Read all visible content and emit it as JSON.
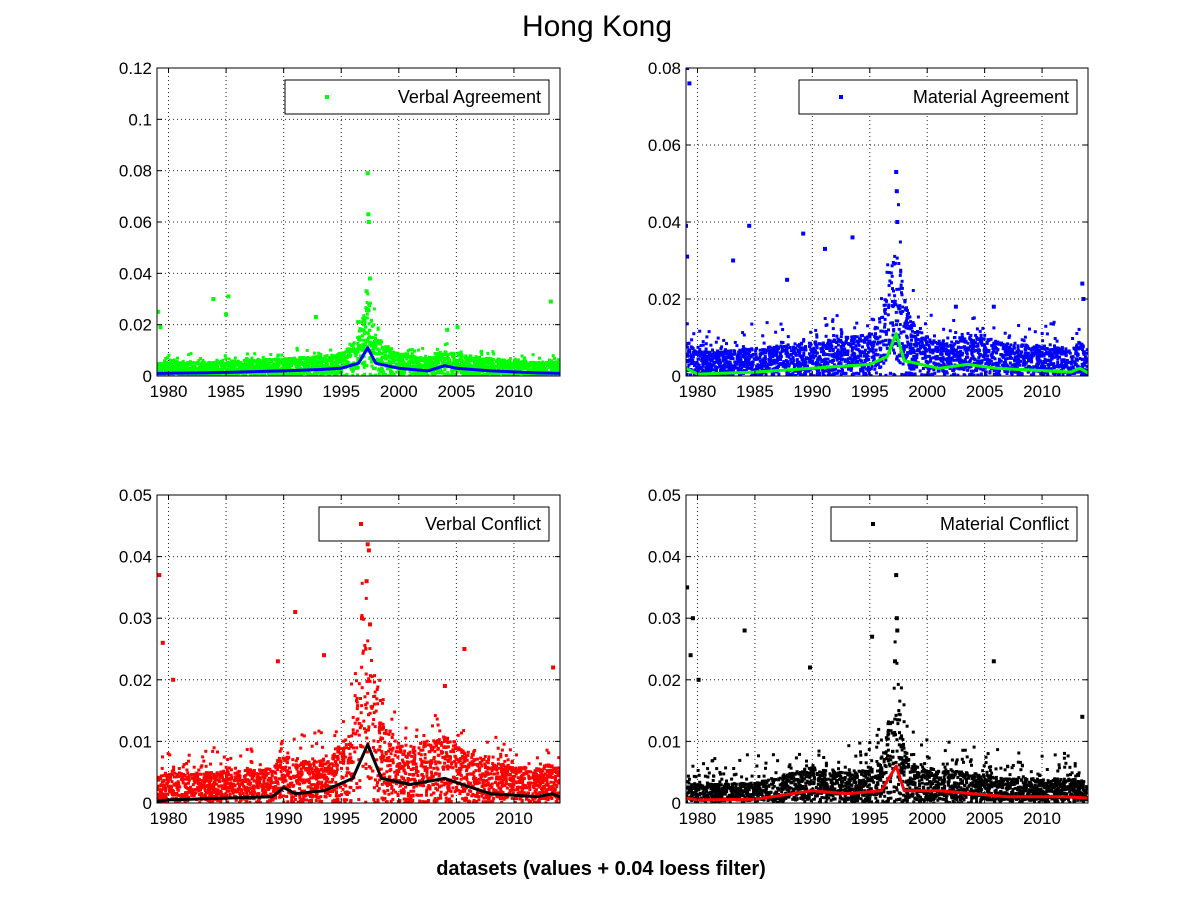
{
  "figure": {
    "title": "Hong Kong",
    "footer": "datasets (values + 0.04 loess filter)"
  },
  "chart_data": [
    {
      "type": "scatter",
      "legend": "Verbal Agreement",
      "legend_position": "top-right",
      "point_color": "#00ff00",
      "smooth_color": "#0000ff",
      "grid": true,
      "xlim": [
        1979,
        2014
      ],
      "ylim": [
        0,
        0.12
      ],
      "xticks": [
        "1980",
        "1985",
        "1990",
        "1995",
        "2000",
        "2005",
        "2010"
      ],
      "yticks": [
        "0",
        "0.02",
        "0.04",
        "0.06",
        "0.08",
        "0.1",
        "0.12"
      ],
      "baseline": 0.003,
      "spread": 0.004,
      "notable_points": [
        {
          "x": 1979.1,
          "y": 0.025
        },
        {
          "x": 1979.3,
          "y": 0.019
        },
        {
          "x": 1983.9,
          "y": 0.03
        },
        {
          "x": 1985.2,
          "y": 0.031
        },
        {
          "x": 1985.0,
          "y": 0.024
        },
        {
          "x": 1992.8,
          "y": 0.023
        },
        {
          "x": 1996.5,
          "y": 0.021
        },
        {
          "x": 1997.3,
          "y": 0.079
        },
        {
          "x": 1997.35,
          "y": 0.063
        },
        {
          "x": 1997.4,
          "y": 0.06
        },
        {
          "x": 1997.5,
          "y": 0.038
        },
        {
          "x": 1997.2,
          "y": 0.033
        },
        {
          "x": 2004.2,
          "y": 0.018
        },
        {
          "x": 2005.1,
          "y": 0.019
        },
        {
          "x": 2013.2,
          "y": 0.029
        }
      ],
      "trend": [
        {
          "x": 1979,
          "y": 0.001
        },
        {
          "x": 1983,
          "y": 0.0012
        },
        {
          "x": 1986,
          "y": 0.0015
        },
        {
          "x": 1990,
          "y": 0.002
        },
        {
          "x": 1993,
          "y": 0.0025
        },
        {
          "x": 1995,
          "y": 0.003
        },
        {
          "x": 1996.5,
          "y": 0.005
        },
        {
          "x": 1997.3,
          "y": 0.011
        },
        {
          "x": 1998,
          "y": 0.005
        },
        {
          "x": 2000,
          "y": 0.003
        },
        {
          "x": 2002.5,
          "y": 0.002
        },
        {
          "x": 2004,
          "y": 0.004
        },
        {
          "x": 2005,
          "y": 0.003
        },
        {
          "x": 2008,
          "y": 0.002
        },
        {
          "x": 2012,
          "y": 0.0012
        },
        {
          "x": 2014,
          "y": 0.001
        }
      ]
    },
    {
      "type": "scatter",
      "legend": "Material Agreement",
      "legend_position": "top-right",
      "point_color": "#0000ff",
      "smooth_color": "#00ff00",
      "grid": true,
      "xlim": [
        1979,
        2014
      ],
      "ylim": [
        0,
        0.08
      ],
      "xticks": [
        "1980",
        "1985",
        "1990",
        "1995",
        "2000",
        "2005",
        "2010"
      ],
      "yticks": [
        "0",
        "0.02",
        "0.04",
        "0.06",
        "0.08"
      ],
      "baseline": 0.005,
      "spread": 0.007,
      "notable_points": [
        {
          "x": 1979.1,
          "y": 0.08
        },
        {
          "x": 1979.3,
          "y": 0.076
        },
        {
          "x": 1979.0,
          "y": 0.039
        },
        {
          "x": 1979.1,
          "y": 0.031
        },
        {
          "x": 1983.1,
          "y": 0.03
        },
        {
          "x": 1984.5,
          "y": 0.039
        },
        {
          "x": 1987.8,
          "y": 0.025
        },
        {
          "x": 1989.2,
          "y": 0.037
        },
        {
          "x": 1991.1,
          "y": 0.033
        },
        {
          "x": 1993.5,
          "y": 0.036
        },
        {
          "x": 1997.3,
          "y": 0.053
        },
        {
          "x": 1997.35,
          "y": 0.048
        },
        {
          "x": 1997.4,
          "y": 0.04
        },
        {
          "x": 2002.5,
          "y": 0.018
        },
        {
          "x": 2005.8,
          "y": 0.018
        },
        {
          "x": 2013.5,
          "y": 0.024
        },
        {
          "x": 2013.6,
          "y": 0.02
        }
      ],
      "trend": [
        {
          "x": 1979,
          "y": 0.002
        },
        {
          "x": 1980,
          "y": 0.0005
        },
        {
          "x": 1985,
          "y": 0.001
        },
        {
          "x": 1990,
          "y": 0.002
        },
        {
          "x": 1995,
          "y": 0.003
        },
        {
          "x": 1996.5,
          "y": 0.005
        },
        {
          "x": 1997.3,
          "y": 0.011
        },
        {
          "x": 1998,
          "y": 0.004
        },
        {
          "x": 2001,
          "y": 0.002
        },
        {
          "x": 2003.5,
          "y": 0.003
        },
        {
          "x": 2006,
          "y": 0.002
        },
        {
          "x": 2012.5,
          "y": 0.001
        },
        {
          "x": 2013.3,
          "y": 0.002
        },
        {
          "x": 2014,
          "y": 0.0008
        }
      ]
    },
    {
      "type": "scatter",
      "legend": "Verbal Conflict",
      "legend_position": "top-right",
      "point_color": "#ff0000",
      "smooth_color": "#000000",
      "grid": true,
      "xlim": [
        1979,
        2014
      ],
      "ylim": [
        0,
        0.05
      ],
      "xticks": [
        "1980",
        "1985",
        "1990",
        "1995",
        "2000",
        "2005",
        "2010"
      ],
      "yticks": [
        "0",
        "0.01",
        "0.02",
        "0.03",
        "0.04",
        "0.05"
      ],
      "baseline": 0.0035,
      "spread": 0.005,
      "notable_points": [
        {
          "x": 1979.2,
          "y": 0.037
        },
        {
          "x": 1979.5,
          "y": 0.026
        },
        {
          "x": 1980.4,
          "y": 0.02
        },
        {
          "x": 1991.0,
          "y": 0.031
        },
        {
          "x": 1989.5,
          "y": 0.023
        },
        {
          "x": 1993.5,
          "y": 0.024
        },
        {
          "x": 1996.8,
          "y": 0.03
        },
        {
          "x": 1997.3,
          "y": 0.042
        },
        {
          "x": 1997.4,
          "y": 0.041
        },
        {
          "x": 1997.2,
          "y": 0.036
        },
        {
          "x": 1997.5,
          "y": 0.029
        },
        {
          "x": 2004.0,
          "y": 0.019
        },
        {
          "x": 2005.7,
          "y": 0.025
        },
        {
          "x": 2013.4,
          "y": 0.022
        }
      ],
      "trend": [
        {
          "x": 1979,
          "y": 0.0003
        },
        {
          "x": 1980,
          "y": 0.0005
        },
        {
          "x": 1985,
          "y": 0.0008
        },
        {
          "x": 1989,
          "y": 0.001
        },
        {
          "x": 1990,
          "y": 0.0025
        },
        {
          "x": 1991,
          "y": 0.0015
        },
        {
          "x": 1993.5,
          "y": 0.002
        },
        {
          "x": 1996,
          "y": 0.004
        },
        {
          "x": 1997.3,
          "y": 0.0095
        },
        {
          "x": 1998.5,
          "y": 0.004
        },
        {
          "x": 2001,
          "y": 0.003
        },
        {
          "x": 2004,
          "y": 0.004
        },
        {
          "x": 2005.5,
          "y": 0.003
        },
        {
          "x": 2008,
          "y": 0.0015
        },
        {
          "x": 2012,
          "y": 0.001
        },
        {
          "x": 2013.3,
          "y": 0.0015
        },
        {
          "x": 2014,
          "y": 0.001
        }
      ]
    },
    {
      "type": "scatter",
      "legend": "Material Conflict",
      "legend_position": "top-right",
      "point_color": "#000000",
      "smooth_color": "#ff0000",
      "grid": true,
      "xlim": [
        1979,
        2014
      ],
      "ylim": [
        0,
        0.05
      ],
      "xticks": [
        "1980",
        "1985",
        "1990",
        "1995",
        "2000",
        "2005",
        "2010"
      ],
      "yticks": [
        "0",
        "0.01",
        "0.02",
        "0.03",
        "0.04",
        "0.05"
      ],
      "baseline": 0.002,
      "spread": 0.005,
      "notable_points": [
        {
          "x": 1979.1,
          "y": 0.035
        },
        {
          "x": 1979.6,
          "y": 0.03
        },
        {
          "x": 1979.4,
          "y": 0.024
        },
        {
          "x": 1980.1,
          "y": 0.02
        },
        {
          "x": 1984.1,
          "y": 0.028
        },
        {
          "x": 1989.8,
          "y": 0.022
        },
        {
          "x": 1995.2,
          "y": 0.027
        },
        {
          "x": 1997.3,
          "y": 0.037
        },
        {
          "x": 1997.35,
          "y": 0.03
        },
        {
          "x": 1997.4,
          "y": 0.028
        },
        {
          "x": 1997.2,
          "y": 0.023
        },
        {
          "x": 2005.8,
          "y": 0.023
        },
        {
          "x": 2013.5,
          "y": 0.014
        }
      ],
      "trend": [
        {
          "x": 1979,
          "y": 0.0008
        },
        {
          "x": 1980,
          "y": 0.0005
        },
        {
          "x": 1985,
          "y": 0.0006
        },
        {
          "x": 1990,
          "y": 0.002
        },
        {
          "x": 1993,
          "y": 0.0015
        },
        {
          "x": 1996,
          "y": 0.002
        },
        {
          "x": 1997.3,
          "y": 0.006
        },
        {
          "x": 1998,
          "y": 0.002
        },
        {
          "x": 2001,
          "y": 0.002
        },
        {
          "x": 2004,
          "y": 0.0015
        },
        {
          "x": 2007,
          "y": 0.001
        },
        {
          "x": 2012,
          "y": 0.001
        },
        {
          "x": 2014,
          "y": 0.0008
        }
      ]
    }
  ]
}
